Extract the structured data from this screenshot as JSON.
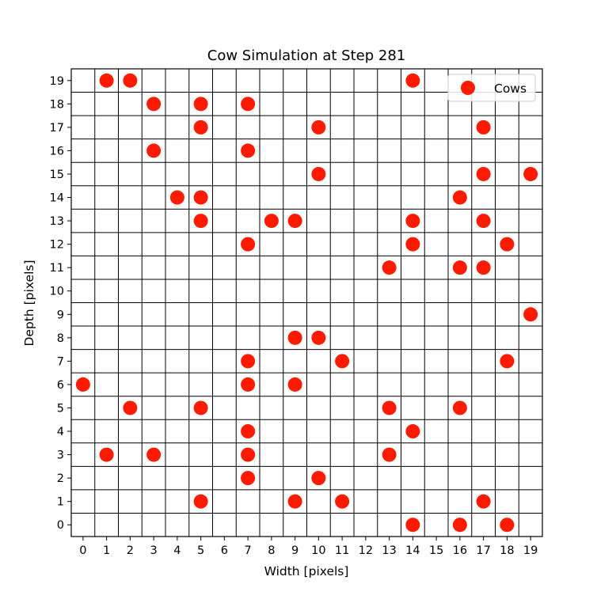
{
  "chart_data": {
    "type": "scatter",
    "title": "Cow Simulation at Step 281",
    "xlabel": "Width [pixels]",
    "ylabel": "Depth [pixels]",
    "xlim": [
      -0.5,
      19.5
    ],
    "ylim": [
      -0.5,
      19.5
    ],
    "grid": true,
    "legend_position": "top-right",
    "xticks": [
      0,
      1,
      2,
      3,
      4,
      5,
      6,
      7,
      8,
      9,
      10,
      11,
      12,
      13,
      14,
      15,
      16,
      17,
      18,
      19
    ],
    "yticks": [
      0,
      1,
      2,
      3,
      4,
      5,
      6,
      7,
      8,
      9,
      10,
      11,
      12,
      13,
      14,
      15,
      16,
      17,
      18,
      19
    ],
    "series": [
      {
        "name": "Cows",
        "color": "#ff1a00",
        "points": [
          [
            1,
            19
          ],
          [
            2,
            19
          ],
          [
            14,
            19
          ],
          [
            3,
            18
          ],
          [
            5,
            18
          ],
          [
            7,
            18
          ],
          [
            5,
            17
          ],
          [
            10,
            17
          ],
          [
            17,
            17
          ],
          [
            3,
            16
          ],
          [
            7,
            16
          ],
          [
            10,
            15
          ],
          [
            17,
            15
          ],
          [
            19,
            15
          ],
          [
            4,
            14
          ],
          [
            5,
            14
          ],
          [
            16,
            14
          ],
          [
            5,
            13
          ],
          [
            8,
            13
          ],
          [
            9,
            13
          ],
          [
            14,
            13
          ],
          [
            17,
            13
          ],
          [
            7,
            12
          ],
          [
            14,
            12
          ],
          [
            18,
            12
          ],
          [
            13,
            11
          ],
          [
            16,
            11
          ],
          [
            17,
            11
          ],
          [
            19,
            9
          ],
          [
            9,
            8
          ],
          [
            10,
            8
          ],
          [
            7,
            7
          ],
          [
            11,
            7
          ],
          [
            18,
            7
          ],
          [
            0,
            6
          ],
          [
            7,
            6
          ],
          [
            9,
            6
          ],
          [
            2,
            5
          ],
          [
            5,
            5
          ],
          [
            13,
            5
          ],
          [
            16,
            5
          ],
          [
            7,
            4
          ],
          [
            14,
            4
          ],
          [
            1,
            3
          ],
          [
            3,
            3
          ],
          [
            7,
            3
          ],
          [
            13,
            3
          ],
          [
            7,
            2
          ],
          [
            10,
            2
          ],
          [
            5,
            1
          ],
          [
            9,
            1
          ],
          [
            11,
            1
          ],
          [
            17,
            1
          ],
          [
            14,
            0
          ],
          [
            16,
            0
          ],
          [
            18,
            0
          ]
        ]
      }
    ]
  }
}
